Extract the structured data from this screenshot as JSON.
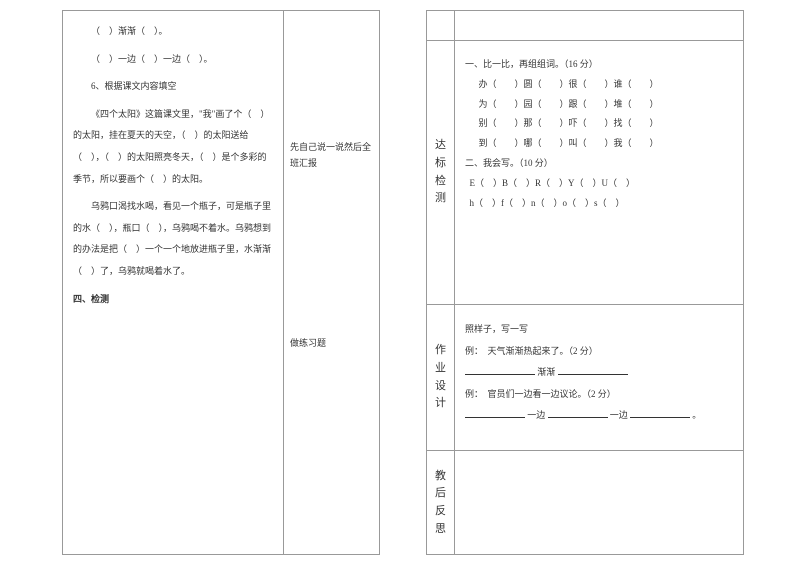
{
  "left": {
    "p1": "（　）渐渐（　）。",
    "p2": "（　）一边（　）一边（　）。",
    "p3": "6、根据课文内容填空",
    "p4": "《四个太阳》这篇课文里，\"我\"画了个（　）的太阳，挂在夏天的天空，（　）的太阳送给（　），（　）的太阳照亮冬天，（　）是个多彩的季节，所以要画个（　）的太阳。",
    "p5": "乌鸦口渴找水喝，看见一个瓶子，可是瓶子里的水（　），瓶口（　），乌鸦喝不着水。乌鸦想到的办法是把（　）一个一个地放进瓶子里，水渐渐（　）了，乌鸦就喝着水了。",
    "p6": "四、检测",
    "side1": "先自己说一说然后全班汇报",
    "side2": "做练习题"
  },
  "right": {
    "label_test": "达标检测",
    "label_hw": "作业设计",
    "label_ref": "教后反思",
    "test": {
      "t1": "一、比一比，再组组词。（16 分）",
      "r1": "办（　　）圆（　　）很（　　）谁（　　）",
      "r2": "为（　　）园（　　）跟（　　）堆（　　）",
      "r3": "别（　　）那（　　）吓（　　）找（　　）",
      "r4": "到（　　）哪（　　）叫（　　）我（　　）",
      "t2": "二、我会写。（10 分）",
      "r5": "  E（　）B（　）R（　）Y（　）U（　）",
      "r6": "  h（　）f（　）n（　）o（　）s（　）"
    },
    "hw": {
      "h0": "照样子，写一写",
      "h1": "例：　天气渐渐热起来了。（2 分）",
      "h2_pre": "",
      "h2_mid": "渐渐",
      "h3": "例：　官员们一边看一边议论。（2 分）",
      "h4_a": "一边",
      "h4_b": "一边",
      "h4_c": "。"
    }
  }
}
